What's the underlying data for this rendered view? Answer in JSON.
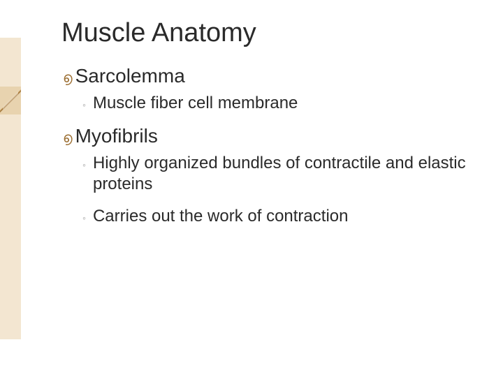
{
  "colors": {
    "background": "#ffffff",
    "title_text": "#2a2a2a",
    "body_text": "#2a2a2a",
    "swirl_accent": "#9c6f33",
    "sub_bullet": "#9c9c9c",
    "deco_strip": "#f3e6d1",
    "deco_accent_dark": "#9c6f33"
  },
  "typography": {
    "title_fontsize_pt": 29,
    "bullet1_fontsize_pt": 21,
    "bullet2_fontsize_pt": 18,
    "font_family": "Arial"
  },
  "glyphs": {
    "swirl": "൭",
    "ring": "◦"
  },
  "title": "Muscle Anatomy",
  "items": [
    {
      "label": "Sarcolemma",
      "subs": [
        "Muscle fiber cell membrane"
      ]
    },
    {
      "label": "Myofibrils",
      "subs": [
        "Highly organized bundles of contractile and elastic proteins",
        "Carries out the work of contraction"
      ]
    }
  ]
}
